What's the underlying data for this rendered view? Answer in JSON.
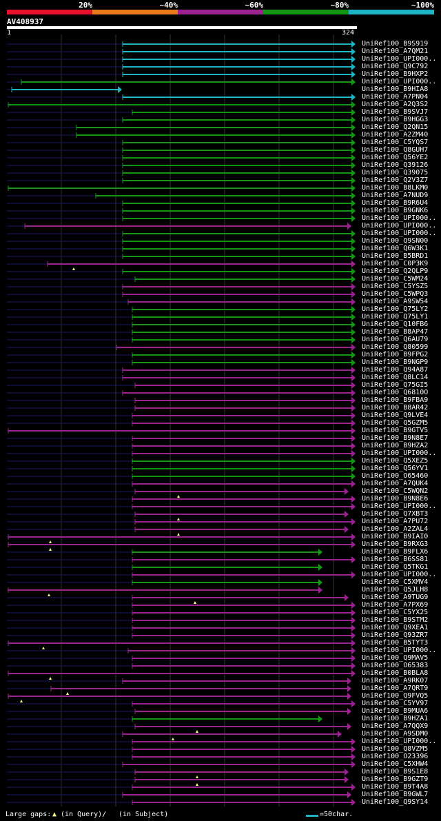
{
  "query_id": "AV408937",
  "query_start": "1",
  "query_end": "324",
  "identity_scale": [
    "20%",
    "~40%",
    "~60%",
    "~80%",
    "~100%"
  ],
  "scale_colors": [
    "#e8112d",
    "#e87a1e",
    "#9b2390",
    "#149614",
    "#1eb4c4"
  ],
  "hit_colors": {
    "cyan": "#1eb4c4",
    "green": "#149614",
    "purple": "#9b2390",
    "line": "#1a1a66"
  },
  "legend_text": "Large gaps:",
  "legend_query": "(in Query)/",
  "legend_subject": "(in Subject)",
  "legend_scale": "=50char.",
  "hits": [
    {
      "label": "UniRef100_B9S919",
      "color": "cyan",
      "start": 178,
      "end": 516,
      "gaps": []
    },
    {
      "label": "UniRef100_A7QM21",
      "color": "cyan",
      "start": 178,
      "end": 516,
      "gaps": []
    },
    {
      "label": "UniRef100_UPI000..",
      "color": "cyan",
      "start": 178,
      "end": 516,
      "gaps": []
    },
    {
      "label": "UniRef100_Q9C792",
      "color": "cyan",
      "start": 178,
      "end": 516,
      "gaps": []
    },
    {
      "label": "UniRef100_B9HXP2",
      "color": "cyan",
      "start": 178,
      "end": 516,
      "gaps": []
    },
    {
      "label": "UniRef100_UPI000..",
      "color": "green",
      "start": 31,
      "end": 516,
      "gaps": []
    },
    {
      "label": "UniRef100_B9HIA8",
      "color": "cyan",
      "start": 17,
      "end": 177,
      "gaps": []
    },
    {
      "label": "UniRef100_A7PN04",
      "color": "cyan",
      "start": 178,
      "end": 516,
      "gaps": []
    },
    {
      "label": "UniRef100_A2Q3S2",
      "color": "green",
      "start": 12,
      "end": 516,
      "gaps": []
    },
    {
      "label": "UniRef100_B9SVJ7",
      "color": "green",
      "start": 192,
      "end": 516,
      "gaps": []
    },
    {
      "label": "UniRef100_B9HGG3",
      "color": "green",
      "start": 178,
      "end": 516,
      "gaps": []
    },
    {
      "label": "UniRef100_Q2QN15",
      "color": "green",
      "start": 111,
      "end": 516,
      "gaps": []
    },
    {
      "label": "UniRef100_A2ZM40",
      "color": "green",
      "start": 111,
      "end": 516,
      "gaps": []
    },
    {
      "label": "UniRef100_C5YQS7",
      "color": "green",
      "start": 178,
      "end": 516,
      "gaps": []
    },
    {
      "label": "UniRef100_Q8GUH7",
      "color": "green",
      "start": 178,
      "end": 516,
      "gaps": []
    },
    {
      "label": "UniRef100_Q56YE2",
      "color": "green",
      "start": 178,
      "end": 516,
      "gaps": []
    },
    {
      "label": "UniRef100_Q39126",
      "color": "green",
      "start": 178,
      "end": 516,
      "gaps": []
    },
    {
      "label": "UniRef100_Q39075",
      "color": "green",
      "start": 178,
      "end": 516,
      "gaps": []
    },
    {
      "label": "UniRef100_Q2V3Z7",
      "color": "green",
      "start": 178,
      "end": 516,
      "gaps": []
    },
    {
      "label": "UniRef100_B8LKM0",
      "color": "green",
      "start": 12,
      "end": 516,
      "gaps": []
    },
    {
      "label": "UniRef100_A7NUD9",
      "color": "green",
      "start": 139,
      "end": 516,
      "gaps": []
    },
    {
      "label": "UniRef100_B9R6U4",
      "color": "green",
      "start": 178,
      "end": 516,
      "gaps": []
    },
    {
      "label": "UniRef100_B9GNK6",
      "color": "green",
      "start": 178,
      "end": 516,
      "gaps": []
    },
    {
      "label": "UniRef100_UPI000..",
      "color": "green",
      "start": 178,
      "end": 516,
      "gaps": []
    },
    {
      "label": "UniRef100_UPI000..",
      "color": "purple",
      "start": 36,
      "end": 510,
      "gaps": []
    },
    {
      "label": "UniRef100_UPI000..",
      "color": "green",
      "start": 178,
      "end": 516,
      "gaps": []
    },
    {
      "label": "UniRef100_Q9SN00",
      "color": "green",
      "start": 178,
      "end": 516,
      "gaps": []
    },
    {
      "label": "UniRef100_Q6W3K1",
      "color": "green",
      "start": 178,
      "end": 516,
      "gaps": []
    },
    {
      "label": "UniRef100_B5BRD1",
      "color": "green",
      "start": 178,
      "end": 516,
      "gaps": []
    },
    {
      "label": "UniRef100_C0P3K9",
      "color": "purple",
      "start": 69,
      "end": 516,
      "gaps": [
        107
      ]
    },
    {
      "label": "UniRef100_Q2QLP9",
      "color": "green",
      "start": 178,
      "end": 516,
      "gaps": []
    },
    {
      "label": "UniRef100_C5WM24",
      "color": "green",
      "start": 196,
      "end": 516,
      "gaps": []
    },
    {
      "label": "UniRef100_C5YSZ5",
      "color": "purple",
      "start": 178,
      "end": 516,
      "gaps": []
    },
    {
      "label": "UniRef100_C5WPQ3",
      "color": "purple",
      "start": 178,
      "end": 516,
      "gaps": []
    },
    {
      "label": "UniRef100_A9SW54",
      "color": "purple",
      "start": 186,
      "end": 516,
      "gaps": []
    },
    {
      "label": "UniRef100_Q75LY2",
      "color": "green",
      "start": 192,
      "end": 516,
      "gaps": []
    },
    {
      "label": "UniRef100_Q75LY1",
      "color": "green",
      "start": 192,
      "end": 516,
      "gaps": []
    },
    {
      "label": "UniRef100_Q10FB6",
      "color": "green",
      "start": 192,
      "end": 516,
      "gaps": []
    },
    {
      "label": "UniRef100_B8AP47",
      "color": "green",
      "start": 192,
      "end": 516,
      "gaps": []
    },
    {
      "label": "UniRef100_Q6AU79",
      "color": "green",
      "start": 192,
      "end": 516,
      "gaps": []
    },
    {
      "label": "UniRef100_Q80599",
      "color": "purple",
      "start": 169,
      "end": 516,
      "gaps": []
    },
    {
      "label": "UniRef100_B9FPG2",
      "color": "green",
      "start": 192,
      "end": 516,
      "gaps": []
    },
    {
      "label": "UniRef100_B9NGP9",
      "color": "green",
      "start": 192,
      "end": 516,
      "gaps": []
    },
    {
      "label": "UniRef100_Q94A87",
      "color": "purple",
      "start": 178,
      "end": 516,
      "gaps": []
    },
    {
      "label": "UniRef100_Q8LC14",
      "color": "purple",
      "start": 178,
      "end": 516,
      "gaps": []
    },
    {
      "label": "UniRef100_Q75GI5",
      "color": "purple",
      "start": 196,
      "end": 516,
      "gaps": []
    },
    {
      "label": "UniRef100_Q6810O",
      "color": "purple",
      "start": 178,
      "end": 516,
      "gaps": []
    },
    {
      "label": "UniRef100_B9FBA9",
      "color": "purple",
      "start": 196,
      "end": 516,
      "gaps": []
    },
    {
      "label": "UniRef100_B8AR42",
      "color": "purple",
      "start": 196,
      "end": 516,
      "gaps": []
    },
    {
      "label": "UniRef100_Q9LVE4",
      "color": "purple",
      "start": 192,
      "end": 516,
      "gaps": []
    },
    {
      "label": "UniRef100_Q5GZM5",
      "color": "purple",
      "start": 192,
      "end": 516,
      "gaps": []
    },
    {
      "label": "UniRef100_B9GTV5",
      "color": "purple",
      "start": 12,
      "end": 516,
      "gaps": []
    },
    {
      "label": "UniRef100_B9N8E7",
      "color": "purple",
      "start": 192,
      "end": 516,
      "gaps": []
    },
    {
      "label": "UniRef100_B9HZA2",
      "color": "purple",
      "start": 192,
      "end": 516,
      "gaps": []
    },
    {
      "label": "UniRef100_UPI000..",
      "color": "purple",
      "start": 192,
      "end": 516,
      "gaps": []
    },
    {
      "label": "UniRef100_Q5XEZ5",
      "color": "green",
      "start": 192,
      "end": 516,
      "gaps": []
    },
    {
      "label": "UniRef100_Q56YV1",
      "color": "green",
      "start": 192,
      "end": 516,
      "gaps": []
    },
    {
      "label": "UniRef100_O65460",
      "color": "green",
      "start": 192,
      "end": 516,
      "gaps": []
    },
    {
      "label": "UniRef100_A7QUK4",
      "color": "purple",
      "start": 192,
      "end": 516,
      "gaps": []
    },
    {
      "label": "UniRef100_C5WQN2",
      "color": "purple",
      "start": 196,
      "end": 506,
      "gaps": [
        259
      ]
    },
    {
      "label": "UniRef100_B9N8E6",
      "color": "purple",
      "start": 192,
      "end": 516,
      "gaps": []
    },
    {
      "label": "UniRef100_UPI000..",
      "color": "purple",
      "start": 192,
      "end": 516,
      "gaps": []
    },
    {
      "label": "UniRef100_Q7XBT3",
      "color": "purple",
      "start": 196,
      "end": 506,
      "gaps": [
        259
      ]
    },
    {
      "label": "UniRef100_A7PU72",
      "color": "purple",
      "start": 196,
      "end": 516,
      "gaps": []
    },
    {
      "label": "UniRef100_A2ZAL4",
      "color": "purple",
      "start": 196,
      "end": 506,
      "gaps": [
        259
      ]
    },
    {
      "label": "UniRef100_B9IAI0",
      "color": "purple",
      "start": 12,
      "end": 516,
      "gaps": [
        73
      ]
    },
    {
      "label": "UniRef100_B9RXG3",
      "color": "purple",
      "start": 12,
      "end": 516,
      "gaps": [
        73
      ]
    },
    {
      "label": "UniRef100_B9FLX6",
      "color": "green",
      "start": 192,
      "end": 468,
      "gaps": []
    },
    {
      "label": "UniRef100_B6SS81",
      "color": "purple",
      "start": 192,
      "end": 516,
      "gaps": []
    },
    {
      "label": "UniRef100_Q5TKG1",
      "color": "green",
      "start": 192,
      "end": 468,
      "gaps": []
    },
    {
      "label": "UniRef100_UPI000..",
      "color": "purple",
      "start": 192,
      "end": 516,
      "gaps": []
    },
    {
      "label": "UniRef100_C5XMV4",
      "color": "green",
      "start": 192,
      "end": 468,
      "gaps": []
    },
    {
      "label": "UniRef100_Q5JLH8",
      "color": "purple",
      "start": 12,
      "end": 468,
      "gaps": [
        71
      ]
    },
    {
      "label": "UniRef100_A9TUG9",
      "color": "purple",
      "start": 192,
      "end": 506,
      "gaps": [
        283
      ]
    },
    {
      "label": "UniRef100_A7PX69",
      "color": "purple",
      "start": 192,
      "end": 516,
      "gaps": []
    },
    {
      "label": "UniRef100_C5YX25",
      "color": "purple",
      "start": 192,
      "end": 516,
      "gaps": []
    },
    {
      "label": "UniRef100_B9STM2",
      "color": "purple",
      "start": 192,
      "end": 516,
      "gaps": []
    },
    {
      "label": "UniRef100_Q9XEA1",
      "color": "purple",
      "start": 192,
      "end": 516,
      "gaps": []
    },
    {
      "label": "UniRef100_Q93ZR7",
      "color": "purple",
      "start": 192,
      "end": 516,
      "gaps": []
    },
    {
      "label": "UniRef100_B5TYT3",
      "color": "purple",
      "start": 12,
      "end": 516,
      "gaps": [
        63
      ]
    },
    {
      "label": "UniRef100_UPI000..",
      "color": "purple",
      "start": 186,
      "end": 516,
      "gaps": []
    },
    {
      "label": "UniRef100_Q9MAV5",
      "color": "purple",
      "start": 192,
      "end": 516,
      "gaps": []
    },
    {
      "label": "UniRef100_O65383",
      "color": "purple",
      "start": 192,
      "end": 516,
      "gaps": []
    },
    {
      "label": "UniRef100_B0BLA8",
      "color": "purple",
      "start": 12,
      "end": 516,
      "gaps": [
        73
      ]
    },
    {
      "label": "UniRef100_A9RK07",
      "color": "purple",
      "start": 178,
      "end": 510,
      "gaps": []
    },
    {
      "label": "UniRef100_A7QRT9",
      "color": "purple",
      "start": 74,
      "end": 510,
      "gaps": [
        98
      ]
    },
    {
      "label": "UniRef100_Q9FVQ5",
      "color": "purple",
      "start": 12,
      "end": 510,
      "gaps": [
        31
      ]
    },
    {
      "label": "UniRef100_C5YV97",
      "color": "purple",
      "start": 192,
      "end": 516,
      "gaps": []
    },
    {
      "label": "UniRef100_B9MUA6",
      "color": "purple",
      "start": 196,
      "end": 510,
      "gaps": []
    },
    {
      "label": "UniRef100_B9HZA1",
      "color": "green",
      "start": 192,
      "end": 468,
      "gaps": []
    },
    {
      "label": "UniRef100_A7QQX9",
      "color": "purple",
      "start": 196,
      "end": 510,
      "gaps": [
        286
      ]
    },
    {
      "label": "UniRef100_A9SDM0",
      "color": "purple",
      "start": 178,
      "end": 496,
      "gaps": [
        251
      ]
    },
    {
      "label": "UniRef100_UPI000..",
      "color": "purple",
      "start": 192,
      "end": 516,
      "gaps": []
    },
    {
      "label": "UniRef100_Q8VZM5",
      "color": "purple",
      "start": 192,
      "end": 516,
      "gaps": []
    },
    {
      "label": "UniRef100_O23396",
      "color": "purple",
      "start": 192,
      "end": 516,
      "gaps": []
    },
    {
      "label": "UniRef100_C5XHW4",
      "color": "purple",
      "start": 178,
      "end": 516,
      "gaps": []
    },
    {
      "label": "UniRef100_B9S1E8",
      "color": "purple",
      "start": 196,
      "end": 506,
      "gaps": [
        286
      ]
    },
    {
      "label": "UniRef100_B9GZT9",
      "color": "purple",
      "start": 196,
      "end": 506,
      "gaps": [
        286
      ]
    },
    {
      "label": "UniRef100_B9T4A8",
      "color": "purple",
      "start": 192,
      "end": 516,
      "gaps": []
    },
    {
      "label": "UniRef100_B9GWL7",
      "color": "purple",
      "start": 178,
      "end": 510,
      "gaps": []
    },
    {
      "label": "UniRef100_Q9SY14",
      "color": "purple",
      "start": 192,
      "end": 516,
      "gaps": []
    }
  ]
}
